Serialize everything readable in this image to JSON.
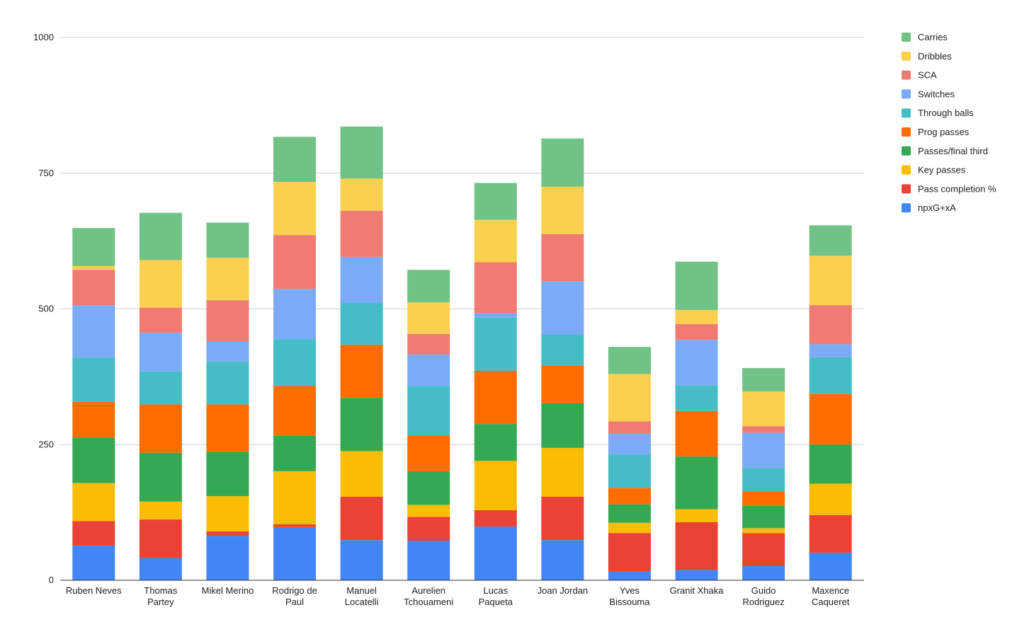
{
  "chart_data": {
    "type": "bar",
    "stacked": true,
    "title": "",
    "xlabel": "",
    "ylabel": "",
    "ylim": [
      0,
      1000
    ],
    "yticks": [
      0,
      250,
      500,
      750,
      1000
    ],
    "grid": true,
    "legend_position": "right",
    "categories": [
      "Ruben Neves",
      "Thomas Partey",
      "Mikel Merino",
      "Rodrigo de Paul",
      "Manuel Locatelli",
      "Aurelien Tchouameni",
      "Lucas Paqueta",
      "Joan Jordan",
      "Yves Bissouma",
      "Granit Xhaka",
      "Guido Rodriguez",
      "Maxence Caqueret"
    ],
    "series": [
      {
        "name": "npxG+xA",
        "color": "#4285F4",
        "values": [
          64,
          41,
          82,
          98,
          74,
          73,
          99,
          74,
          17,
          19,
          26,
          51
        ]
      },
      {
        "name": "Pass completion %",
        "color": "#EA4335",
        "values": [
          45,
          71,
          8,
          5,
          80,
          44,
          30,
          80,
          70,
          88,
          61,
          69
        ]
      },
      {
        "name": "Key passes",
        "color": "#FBBC04",
        "values": [
          70,
          33,
          65,
          98,
          84,
          22,
          91,
          90,
          19,
          24,
          9,
          58
        ]
      },
      {
        "name": "Passes/final third",
        "color": "#34A853",
        "values": [
          84,
          90,
          81,
          65,
          98,
          62,
          68,
          82,
          34,
          97,
          41,
          72
        ]
      },
      {
        "name": "Prog passes",
        "color": "#FF6D01",
        "values": [
          66,
          89,
          88,
          92,
          98,
          66,
          98,
          70,
          30,
          84,
          27,
          93
        ]
      },
      {
        "name": "Through balls",
        "color": "#46BDC6",
        "values": [
          81,
          61,
          79,
          86,
          77,
          91,
          98,
          57,
          62,
          47,
          42,
          68
        ]
      },
      {
        "name": "Switches",
        "color": "#7BAAF7",
        "values": [
          97,
          71,
          37,
          93,
          85,
          58,
          8,
          98,
          38,
          84,
          66,
          24
        ]
      },
      {
        "name": "SCA",
        "color": "#F07B72",
        "values": [
          65,
          46,
          76,
          99,
          85,
          38,
          94,
          87,
          23,
          29,
          12,
          72
        ]
      },
      {
        "name": "Dribbles",
        "color": "#FCD04F",
        "values": [
          7,
          88,
          78,
          98,
          59,
          58,
          78,
          87,
          87,
          26,
          64,
          91
        ]
      },
      {
        "name": "Carries",
        "color": "#71C287",
        "values": [
          70,
          87,
          65,
          83,
          96,
          60,
          68,
          89,
          50,
          89,
          43,
          56
        ]
      }
    ]
  }
}
